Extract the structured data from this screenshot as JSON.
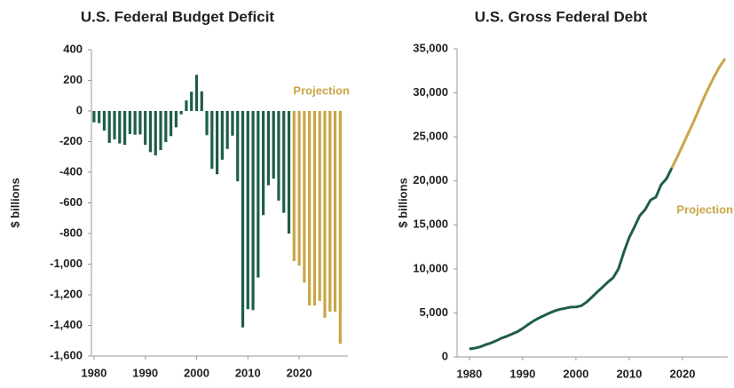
{
  "chart_data": [
    {
      "type": "bar",
      "title": "U.S. Federal Budget Deficit",
      "y_label": "$ billions",
      "x": [
        1980,
        1981,
        1982,
        1983,
        1984,
        1985,
        1986,
        1987,
        1988,
        1989,
        1990,
        1991,
        1992,
        1993,
        1994,
        1995,
        1996,
        1997,
        1998,
        1999,
        2000,
        2001,
        2002,
        2003,
        2004,
        2005,
        2006,
        2007,
        2008,
        2009,
        2010,
        2011,
        2012,
        2013,
        2014,
        2015,
        2016,
        2017,
        2018,
        2019,
        2020,
        2021,
        2022,
        2023,
        2024,
        2025,
        2026,
        2027,
        2028
      ],
      "series": [
        {
          "color": "#1e5e47",
          "values": [
            -74,
            -79,
            -128,
            -208,
            -185,
            -212,
            -221,
            -150,
            -155,
            -153,
            -221,
            -269,
            -290,
            -255,
            -203,
            -164,
            -107,
            -22,
            69,
            126,
            236,
            128,
            -158,
            -378,
            -413,
            -318,
            -248,
            -161,
            -459,
            -1413,
            -1294,
            -1300,
            -1087,
            -680,
            -485,
            -442,
            -585,
            -665,
            -800,
            null,
            null,
            null,
            null,
            null,
            null,
            null,
            null,
            null,
            null
          ]
        },
        {
          "name": "Projection",
          "color": "#c9a646",
          "values": [
            null,
            null,
            null,
            null,
            null,
            null,
            null,
            null,
            null,
            null,
            null,
            null,
            null,
            null,
            null,
            null,
            null,
            null,
            null,
            null,
            null,
            null,
            null,
            null,
            null,
            null,
            null,
            null,
            null,
            null,
            null,
            null,
            null,
            null,
            null,
            null,
            null,
            null,
            null,
            -980,
            -1010,
            -1120,
            -1270,
            -1270,
            -1240,
            -1350,
            -1310,
            -1310,
            -1520
          ]
        }
      ],
      "xlim": [
        1979.5,
        2029.5
      ],
      "xticks": [
        1980,
        1990,
        2000,
        2010,
        2020
      ],
      "ylim": [
        -1600,
        400
      ],
      "yticks": [
        {
          "value": -1600,
          "label": "-1,600"
        },
        {
          "value": -1400,
          "label": "-1,400"
        },
        {
          "value": -1200,
          "label": "-1,200"
        },
        {
          "value": -1000,
          "label": "-1,000"
        },
        -800,
        -600,
        -400,
        -200,
        0,
        200,
        400
      ]
    },
    {
      "type": "line",
      "title": "U.S. Gross Federal Debt",
      "y_label": "$ billions",
      "x": [
        1980,
        1981,
        1982,
        1983,
        1984,
        1985,
        1986,
        1987,
        1988,
        1989,
        1990,
        1991,
        1992,
        1993,
        1994,
        1995,
        1996,
        1997,
        1998,
        1999,
        2000,
        2001,
        2002,
        2003,
        2004,
        2005,
        2006,
        2007,
        2008,
        2009,
        2010,
        2011,
        2012,
        2013,
        2014,
        2015,
        2016,
        2017,
        2018,
        2019,
        2020,
        2021,
        2022,
        2023,
        2024,
        2025,
        2026,
        2027,
        2028
      ],
      "series": [
        {
          "color": "#1e5e47",
          "values": [
            908,
            998,
            1142,
            1377,
            1572,
            1823,
            2125,
            2340,
            2602,
            2857,
            3233,
            3665,
            4065,
            4411,
            4693,
            4974,
            5225,
            5413,
            5526,
            5656,
            5674,
            5807,
            6228,
            6783,
            7379,
            7933,
            8507,
            9008,
            10025,
            11910,
            13562,
            14790,
            16066,
            16738,
            17824,
            18151,
            19573,
            20245,
            21462,
            null,
            null,
            null,
            null,
            null,
            null,
            null,
            null,
            null,
            null
          ]
        },
        {
          "name": "Projection",
          "color": "#c9a646",
          "values": [
            null,
            null,
            null,
            null,
            null,
            null,
            null,
            null,
            null,
            null,
            null,
            null,
            null,
            null,
            null,
            null,
            null,
            null,
            null,
            null,
            null,
            null,
            null,
            null,
            null,
            null,
            null,
            null,
            null,
            null,
            null,
            null,
            null,
            null,
            null,
            null,
            null,
            null,
            21462,
            22700,
            24000,
            25300,
            26600,
            28000,
            29400,
            30700,
            31900,
            33000,
            33900
          ]
        }
      ],
      "xlim": [
        1977.7,
        2028.5
      ],
      "xticks": [
        1980,
        1990,
        2000,
        2010,
        2020
      ],
      "ylim": [
        0,
        35000
      ],
      "yticks": [
        0,
        {
          "value": 5000,
          "label": "5,000"
        },
        {
          "value": 10000,
          "label": "10,000"
        },
        {
          "value": 15000,
          "label": "15,000"
        },
        {
          "value": 20000,
          "label": "20,000"
        },
        {
          "value": 25000,
          "label": "25,000"
        },
        {
          "value": 30000,
          "label": "30,000"
        },
        {
          "value": 35000,
          "label": "35,000"
        }
      ]
    }
  ]
}
